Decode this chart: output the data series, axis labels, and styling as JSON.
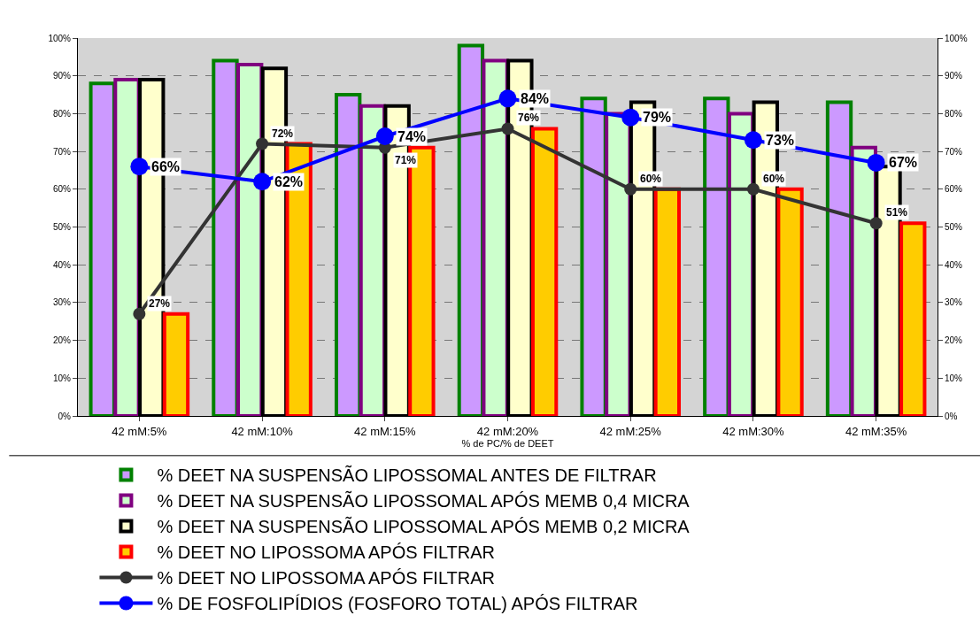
{
  "chart_data": {
    "type": "bar",
    "xlabel": "% de PC/% de DEET",
    "categories": [
      "42 mM:5%",
      "42 mM:10%",
      "42 mM:15%",
      "42 mM:20%",
      "42 mM:25%",
      "42 mM:30%",
      "42 mM:35%"
    ],
    "series": [
      {
        "name": "% DEET NA SUSPENSÃO LIPOSSOMAL ANTES DE FILTRAR",
        "color": "#cc99ff",
        "values": [
          88,
          94,
          85,
          98,
          84,
          84,
          83
        ]
      },
      {
        "name": "% DEET NA SUSPENSÃO LIPOSSOMAL APÓS MEMB 0,4 MICRA",
        "color": "#ccffcc",
        "values": [
          89,
          93,
          82,
          94,
          80,
          80,
          71
        ]
      },
      {
        "name": "% DEET NA SUSPENSÃO LIPOSSOMAL APÓS MEMB 0,2 MICRA",
        "color": "#ffffcc",
        "values": [
          89,
          92,
          82,
          94,
          83,
          83,
          66
        ]
      },
      {
        "name": "% DEET NO LIPOSSOMA APÓS FILTRAR",
        "color": "#ffcc00",
        "values": [
          27,
          72,
          71,
          76,
          60,
          60,
          51
        ]
      },
      {
        "name": "% DEET NO LIPOSSOMA APÓS FILTRAR",
        "type": "line",
        "color": "#333333",
        "marker": "circle",
        "values": [
          27,
          72,
          71,
          76,
          60,
          60,
          51
        ],
        "value_labels": [
          "27%",
          "72%",
          "71%",
          "76%",
          "60%",
          "60%",
          "51%"
        ]
      },
      {
        "name": "% DE FOSFOLIPÍDIOS (FOSFORO TOTAL) APÓS FILTRAR",
        "type": "line",
        "color": "#0000ff",
        "marker": "circle",
        "values": [
          66,
          62,
          74,
          84,
          79,
          73,
          67
        ],
        "value_labels": [
          "66%",
          "62%",
          "74%",
          "84%",
          "79%",
          "73%",
          "67%"
        ]
      }
    ],
    "ylim": [
      0,
      100
    ],
    "yticks": [
      {
        "value": 0,
        "label": "0%"
      },
      {
        "value": 10,
        "label": "10%"
      },
      {
        "value": 20,
        "label": "20%"
      },
      {
        "value": 30,
        "label": "30%"
      },
      {
        "value": 40,
        "label": "40%"
      },
      {
        "value": 50,
        "label": "50%"
      },
      {
        "value": 60,
        "label": "60%"
      },
      {
        "value": 70,
        "label": "70%"
      },
      {
        "value": 80,
        "label": "80%"
      },
      {
        "value": 90,
        "label": "90%"
      },
      {
        "value": 100,
        "label": "100%"
      }
    ],
    "y2lim": [
      0,
      100
    ],
    "y2ticks": [
      {
        "value": 0,
        "label": "0%"
      },
      {
        "value": 10,
        "label": "10%"
      },
      {
        "value": 20,
        "label": "20%"
      },
      {
        "value": 30,
        "label": "30%"
      },
      {
        "value": 40,
        "label": "40%"
      },
      {
        "value": 50,
        "label": "50%"
      },
      {
        "value": 60,
        "label": "60%"
      },
      {
        "value": 70,
        "label": "70%"
      },
      {
        "value": 80,
        "label": "80%"
      },
      {
        "value": 90,
        "label": "90%"
      },
      {
        "value": 100,
        "label": "100%"
      }
    ],
    "grid": "y",
    "legend": "bottom"
  }
}
